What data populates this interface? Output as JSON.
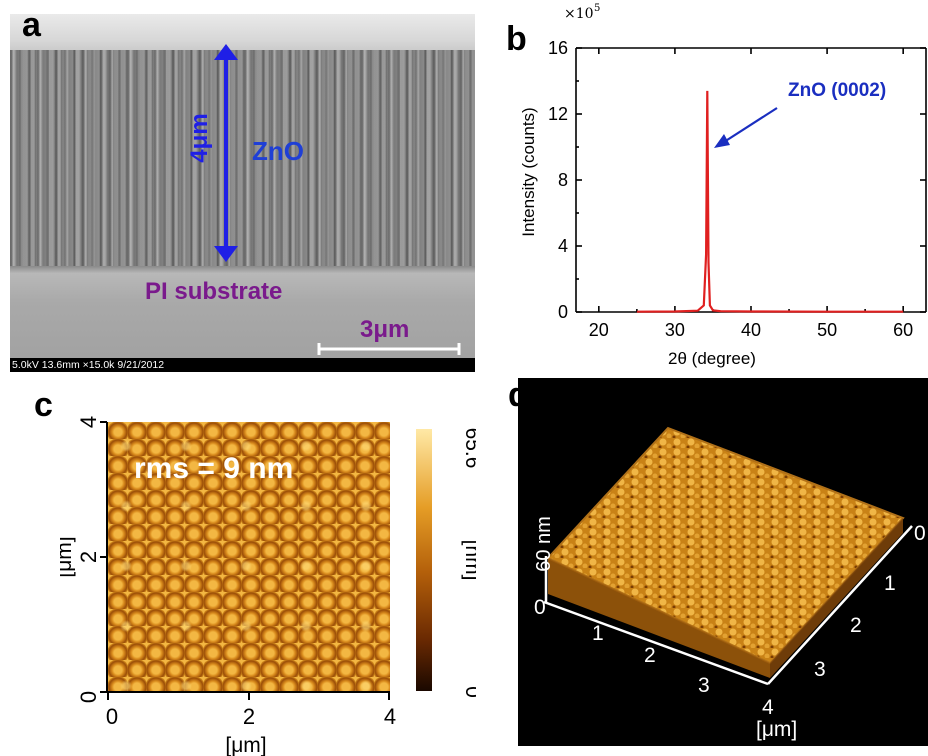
{
  "panels": {
    "a": {
      "letter": "a",
      "thickness_label": "4μm",
      "layer_label": "ZnO",
      "substrate_label": "PI substrate",
      "scale_label": "3μm",
      "sem_info": "5.0kV 13.6mm ×15.0k 9/21/2012",
      "colors": {
        "arrow": "#1f1fe6",
        "layer_text": "#1f3fd6",
        "substrate_text": "#7a1a8c",
        "scale_text": "#7a1a8c"
      }
    },
    "b": {
      "letter": "b",
      "peak_label": "ZnO (0002)",
      "exponent_label": "×10",
      "exponent_power": "5",
      "colors": {
        "line": "#e02020",
        "annotation": "#1a2ec0"
      }
    },
    "c": {
      "letter": "c",
      "rms_label": "rms = 9 nm",
      "xlabel": "[μm]",
      "ylabel": "[μm]",
      "x_ticks": [
        "0",
        "2",
        "4"
      ],
      "y_ticks": [
        "0",
        "2",
        "4"
      ],
      "colorbar_label": "[nm]",
      "colorbar_max": "65.6",
      "colorbar_min": "0"
    },
    "d": {
      "letter": "d",
      "z_label": "60 nm",
      "z_zero": "0",
      "front_ticks": [
        "1",
        "2",
        "3",
        "4"
      ],
      "side_ticks": [
        "0",
        "1",
        "2",
        "3"
      ],
      "unit_label": "[μm]"
    }
  },
  "chart_data": {
    "type": "line",
    "title": "",
    "xlabel": "2θ (degree)",
    "ylabel": "Intensity (counts)",
    "xlim": [
      17,
      63
    ],
    "ylim": [
      0,
      16
    ],
    "x_ticks": [
      "20",
      "30",
      "40",
      "50",
      "60"
    ],
    "y_ticks": [
      "0",
      "4",
      "8",
      "12",
      "16"
    ],
    "grid": false,
    "series": [
      {
        "x": [
          25,
          30,
          33,
          33.8,
          34.1,
          34.25,
          34.42,
          34.6,
          35,
          36,
          40,
          50,
          60
        ],
        "values": [
          0.02,
          0.03,
          0.08,
          0.4,
          3.5,
          13.4,
          3.0,
          0.4,
          0.1,
          0.05,
          0.03,
          0.02,
          0.02
        ]
      }
    ]
  }
}
